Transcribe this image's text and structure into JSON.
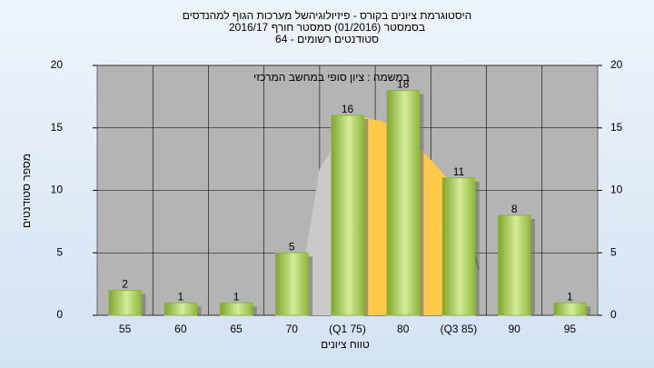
{
  "chart_data": {
    "type": "bar",
    "title": [
      "היסטוגרמת ציונים בקורס - פיזיולוגיהשל מערכות הגוף למהנדסים",
      "בסמסטר  (01/2016)  סמסטר חורף 2016/17",
      "סטודנטים רשומים - 64"
    ],
    "annotation": "במשמה : ציון סופי במחשב המרכזי",
    "x_label": "טווח ציונים",
    "y_label": "מספר סטודנטים",
    "categories": [
      "55",
      "60",
      "65",
      "70",
      "(Q1 75)",
      "80",
      "(Q3 85)",
      "90",
      "95"
    ],
    "values": [
      2,
      1,
      1,
      5,
      16,
      18,
      11,
      8,
      1
    ],
    "color": "#8fb83a",
    "ylim": [
      0,
      20
    ],
    "yticks": [
      0,
      5,
      10,
      15,
      20
    ],
    "y2lim": [
      0,
      20
    ],
    "y2ticks": [
      0,
      5,
      10,
      15,
      20
    ],
    "grid": true
  }
}
